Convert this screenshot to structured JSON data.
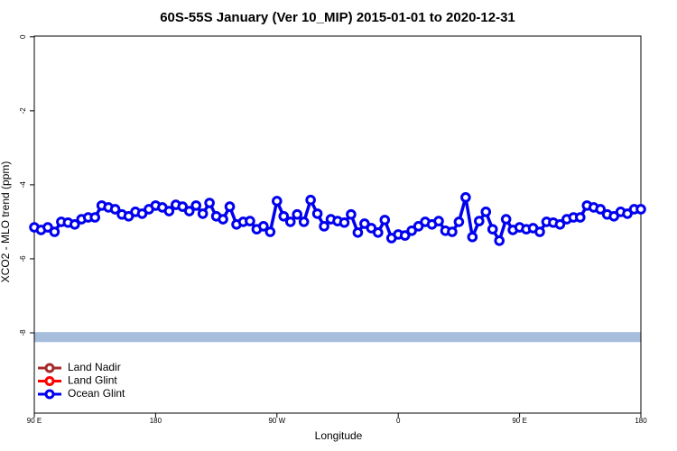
{
  "chart_data": {
    "type": "line",
    "title": "60S-55S January (Ver 10_MIP)   2015-01-01 to 2020-12-31",
    "x_label": "Longitude",
    "y_label": "XCO2 - MLO trend (ppm)",
    "x": [
      90,
      95,
      100,
      105,
      110,
      115,
      120,
      125,
      130,
      135,
      140,
      145,
      150,
      155,
      160,
      165,
      170,
      175,
      180,
      185,
      190,
      195,
      200,
      205,
      210,
      215,
      220,
      225,
      230,
      235,
      240,
      245,
      250,
      255,
      260,
      265,
      270,
      275,
      280,
      285,
      290,
      295,
      300,
      305,
      310,
      315,
      320,
      325,
      330,
      335,
      340,
      345,
      350,
      355,
      360,
      365,
      370,
      375,
      380,
      385,
      390,
      395,
      400,
      405,
      410,
      415,
      420,
      425,
      430,
      435,
      440,
      445,
      450,
      455,
      460,
      465,
      470,
      475,
      480,
      485,
      490,
      495,
      500,
      505,
      510,
      515,
      520,
      525,
      530,
      535,
      540
    ],
    "series": [
      {
        "name": "Land Nadir",
        "color": "#a52a2a",
        "values": [
          null,
          null,
          null,
          null,
          null,
          null,
          null,
          null,
          null,
          null,
          null,
          null,
          null,
          null,
          null,
          null,
          null,
          null,
          null,
          null,
          null,
          null,
          null,
          null,
          null,
          null,
          null,
          null,
          null,
          null,
          null,
          null,
          null,
          null,
          null,
          null,
          null,
          null,
          null,
          null,
          null,
          null,
          null,
          null,
          null,
          null,
          null,
          null,
          null,
          null,
          null,
          null,
          null,
          null,
          null,
          null,
          null,
          null,
          null,
          null,
          null,
          null,
          null,
          null,
          null,
          null,
          null,
          null,
          null,
          null,
          null,
          null,
          null,
          null,
          null,
          null,
          null,
          null,
          null,
          null,
          null,
          null,
          null,
          null,
          null,
          null,
          null,
          null,
          null,
          null,
          null
        ]
      },
      {
        "name": "Land Glint",
        "color": "#ff0000",
        "values": [
          null,
          null,
          null,
          null,
          null,
          null,
          null,
          null,
          null,
          null,
          null,
          null,
          null,
          null,
          null,
          null,
          null,
          null,
          null,
          null,
          null,
          null,
          null,
          null,
          null,
          null,
          null,
          null,
          null,
          null,
          null,
          null,
          null,
          null,
          null,
          null,
          null,
          null,
          null,
          null,
          null,
          null,
          null,
          null,
          null,
          null,
          null,
          null,
          null,
          null,
          null,
          null,
          null,
          null,
          null,
          null,
          null,
          null,
          null,
          null,
          null,
          null,
          null,
          null,
          null,
          null,
          null,
          null,
          null,
          null,
          null,
          null,
          null,
          null,
          null,
          null,
          null,
          null,
          null,
          null,
          null,
          null,
          null,
          null,
          null,
          null,
          null,
          null,
          null,
          null,
          null
        ]
      },
      {
        "name": "Ocean Glint",
        "color": "#0000ee",
        "values": [
          -5.15,
          -5.22,
          -5.15,
          -5.27,
          -5.0,
          -5.02,
          -5.07,
          -4.93,
          -4.88,
          -4.88,
          -4.56,
          -4.61,
          -4.66,
          -4.8,
          -4.85,
          -4.73,
          -4.78,
          -4.66,
          -4.56,
          -4.61,
          -4.71,
          -4.54,
          -4.59,
          -4.71,
          -4.56,
          -4.78,
          -4.49,
          -4.85,
          -4.93,
          -4.59,
          -5.07,
          -5.0,
          -4.98,
          -5.2,
          -5.12,
          -5.27,
          -4.44,
          -4.85,
          -5.0,
          -4.8,
          -5.0,
          -4.41,
          -4.78,
          -5.12,
          -4.93,
          -4.98,
          -5.02,
          -4.8,
          -5.29,
          -5.05,
          -5.17,
          -5.29,
          -4.95,
          -5.44,
          -5.34,
          -5.37,
          -5.24,
          -5.12,
          -5.0,
          -5.07,
          -4.98,
          -5.24,
          -5.27,
          -5.0,
          -4.34,
          -5.41,
          -4.98,
          -4.73,
          -5.2,
          -5.51,
          -4.93,
          -5.22,
          -5.15,
          -5.2,
          -5.17,
          -5.27,
          -5.0,
          -5.02,
          -5.07,
          -4.93,
          -4.88,
          -4.88,
          -4.56,
          -4.61,
          -4.66,
          -4.8,
          -4.85,
          -4.73,
          -4.78,
          -4.66,
          -4.66
        ]
      }
    ],
    "band": {
      "ymin": -8.25,
      "ymax": -7.98,
      "color": "#a6bddc"
    },
    "xlim": [
      90,
      540
    ],
    "xticks": [
      {
        "value": 90,
        "label": "90 E"
      },
      180,
      {
        "value": 270,
        "label": "90 W"
      },
      {
        "value": 360,
        "label": "0"
      },
      {
        "value": 450,
        "label": "90 E"
      },
      {
        "value": 540,
        "label": "180"
      }
    ],
    "ylim": [
      -10.17,
      0.02
    ],
    "yticks": [
      0,
      -2,
      -4,
      -6,
      -8
    ],
    "legend": "bottom-left"
  }
}
